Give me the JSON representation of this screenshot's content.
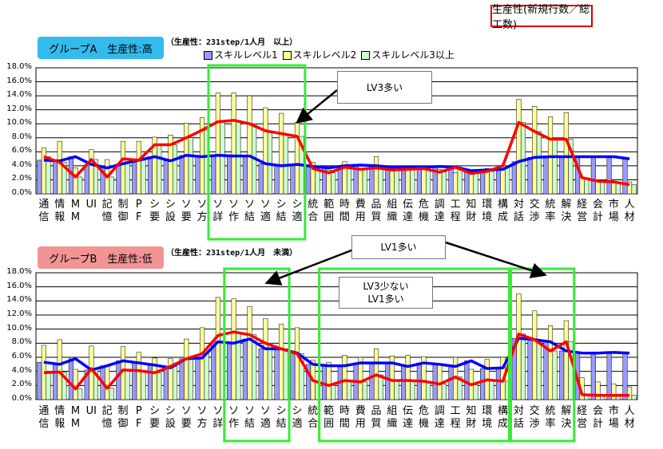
{
  "header": {
    "title": "生産性(新規行数／総工数)"
  },
  "legend": [
    "スキルレベル1",
    "スキルレベル2",
    "スキルレベル3以上"
  ],
  "colors": {
    "level1": "#9999ff",
    "level2": "#ffff99",
    "level3": "#ccffcc",
    "line1": "#0000ff",
    "line3": "#ff0000",
    "highlight": "#33ee33"
  },
  "annotations": {
    "a_callout": "LV3多い",
    "b_callout1": "LV1多い",
    "b_callout2_line1": "LV3少ない",
    "b_callout2_line2": "LV1多い"
  },
  "chart_data": [
    {
      "type": "bar",
      "title": "グループA　生産性:高",
      "subtitle": "（生産性：231step/1人月　以上）",
      "ylim": [
        0,
        18
      ],
      "yticks": [
        "0.0%",
        "2.0%",
        "4.0%",
        "6.0%",
        "8.0%",
        "10.0%",
        "12.0%",
        "14.0%",
        "16.0%",
        "18.0%"
      ],
      "categories": [
        "通信",
        "情報",
        "MM",
        "UI",
        "記憶",
        "制御",
        "PF",
        "シ要",
        "シ設",
        "ソ要",
        "ソ方",
        "ソ詳",
        "ソ作",
        "ソ結",
        "ソ適",
        "シ結",
        "シ適",
        "統合",
        "範囲",
        "時間",
        "費用",
        "品質",
        "組織",
        "伝達",
        "危機",
        "調達",
        "工程",
        "知財",
        "環境",
        "構成",
        "対話",
        "交渉",
        "統率",
        "解決",
        "経営",
        "会計",
        "市場",
        "人材"
      ],
      "series": [
        {
          "name": "スキルレベル1",
          "values": [
            4.8,
            4.7,
            5.3,
            4.2,
            3.7,
            4.3,
            4.8,
            5.3,
            4.7,
            5.5,
            5.3,
            5.5,
            5.4,
            5.4,
            4.3,
            4.0,
            4.2,
            3.9,
            3.7,
            4.0,
            4.1,
            4.0,
            3.8,
            3.8,
            3.8,
            3.9,
            3.8,
            3.3,
            3.4,
            3.5,
            4.6,
            5.2,
            5.3,
            5.3,
            5.3,
            5.3,
            5.3,
            5.0
          ]
        },
        {
          "name": "スキルレベル2",
          "values": [
            6.6,
            7.5,
            3.7,
            6.3,
            4.9,
            7.5,
            7.5,
            8.1,
            8.4,
            10.1,
            10.9,
            14.4,
            14.4,
            14.0,
            12.3,
            11.5,
            10.2,
            4.5,
            3.4,
            4.6,
            3.6,
            5.3,
            3.6,
            3.6,
            3.6,
            3.5,
            3.0,
            3.4,
            3.6,
            4.0,
            13.5,
            12.5,
            11.0,
            11.6,
            2.3,
            1.8,
            1.8,
            1.7
          ]
        },
        {
          "name": "スキルレベル3以上",
          "values": [
            5.3,
            4.5,
            2.4,
            4.9,
            2.4,
            5.0,
            4.8,
            7.0,
            7.0,
            8.0,
            9.1,
            10.3,
            10.5,
            10.0,
            9.0,
            8.6,
            8.2,
            3.6,
            3.0,
            3.8,
            3.5,
            3.7,
            3.4,
            3.5,
            3.6,
            3.1,
            3.8,
            2.9,
            3.2,
            4.0,
            10.2,
            8.9,
            7.8,
            7.8,
            2.3,
            1.8,
            1.7,
            1.3
          ]
        }
      ],
      "highlights": [
        [
          11,
          16
        ]
      ]
    },
    {
      "type": "bar",
      "title": "グループB　生産性:低",
      "subtitle": "（生産性：231step/1人月　未満）",
      "ylim": [
        0,
        18
      ],
      "yticks": [
        "0.0%",
        "2.0%",
        "4.0%",
        "6.0%",
        "8.0%",
        "10.0%",
        "12.0%",
        "14.0%",
        "16.0%",
        "18.0%"
      ],
      "categories": [
        "通信",
        "情報",
        "MM",
        "UI",
        "記憶",
        "制御",
        "PF",
        "シ要",
        "シ設",
        "ソ要",
        "ソ方",
        "ソ詳",
        "ソ作",
        "ソ結",
        "ソ適",
        "シ結",
        "シ適",
        "統合",
        "範囲",
        "時間",
        "費用",
        "品質",
        "組織",
        "伝達",
        "危機",
        "調達",
        "工程",
        "知財",
        "環境",
        "構成",
        "対話",
        "交渉",
        "統率",
        "解決",
        "経営",
        "会計",
        "市場",
        "人材"
      ],
      "series": [
        {
          "name": "スキルレベル1",
          "values": [
            5.3,
            5.0,
            5.8,
            4.2,
            4.8,
            5.5,
            5.2,
            4.9,
            4.5,
            5.8,
            5.9,
            8.2,
            8.0,
            8.6,
            7.2,
            7.2,
            6.6,
            5.0,
            4.8,
            4.8,
            5.2,
            5.2,
            5.2,
            4.7,
            5.2,
            5.0,
            4.7,
            5.5,
            4.4,
            4.5,
            8.7,
            8.5,
            8.2,
            6.9,
            6.6,
            6.6,
            6.7,
            6.6
          ]
        },
        {
          "name": "スキルレベル2",
          "values": [
            7.7,
            8.5,
            4.3,
            7.6,
            4.9,
            7.5,
            6.7,
            5.9,
            5.8,
            8.6,
            10.2,
            14.5,
            14.3,
            13.2,
            11.5,
            10.7,
            10.2,
            5.6,
            5.3,
            6.3,
            6.0,
            7.2,
            6.2,
            6.3,
            6.1,
            5.1,
            6.0,
            4.3,
            5.7,
            6.0,
            15.0,
            12.6,
            10.5,
            11.2,
            3.1,
            2.5,
            2.2,
            1.8
          ]
        },
        {
          "name": "スキルレベル3以上",
          "values": [
            3.8,
            3.9,
            1.5,
            4.4,
            1.6,
            4.2,
            4.1,
            3.8,
            4.7,
            5.8,
            6.5,
            9.1,
            9.6,
            9.2,
            8.0,
            7.2,
            6.5,
            2.7,
            2.0,
            2.7,
            2.5,
            3.5,
            2.7,
            2.7,
            2.6,
            2.2,
            3.2,
            2.1,
            2.8,
            2.6,
            9.3,
            8.5,
            6.9,
            8.2,
            0.7,
            0.6,
            0.6,
            0.6
          ]
        }
      ],
      "highlights": [
        [
          12,
          15
        ],
        [
          18,
          29
        ],
        [
          30,
          33
        ]
      ]
    }
  ]
}
